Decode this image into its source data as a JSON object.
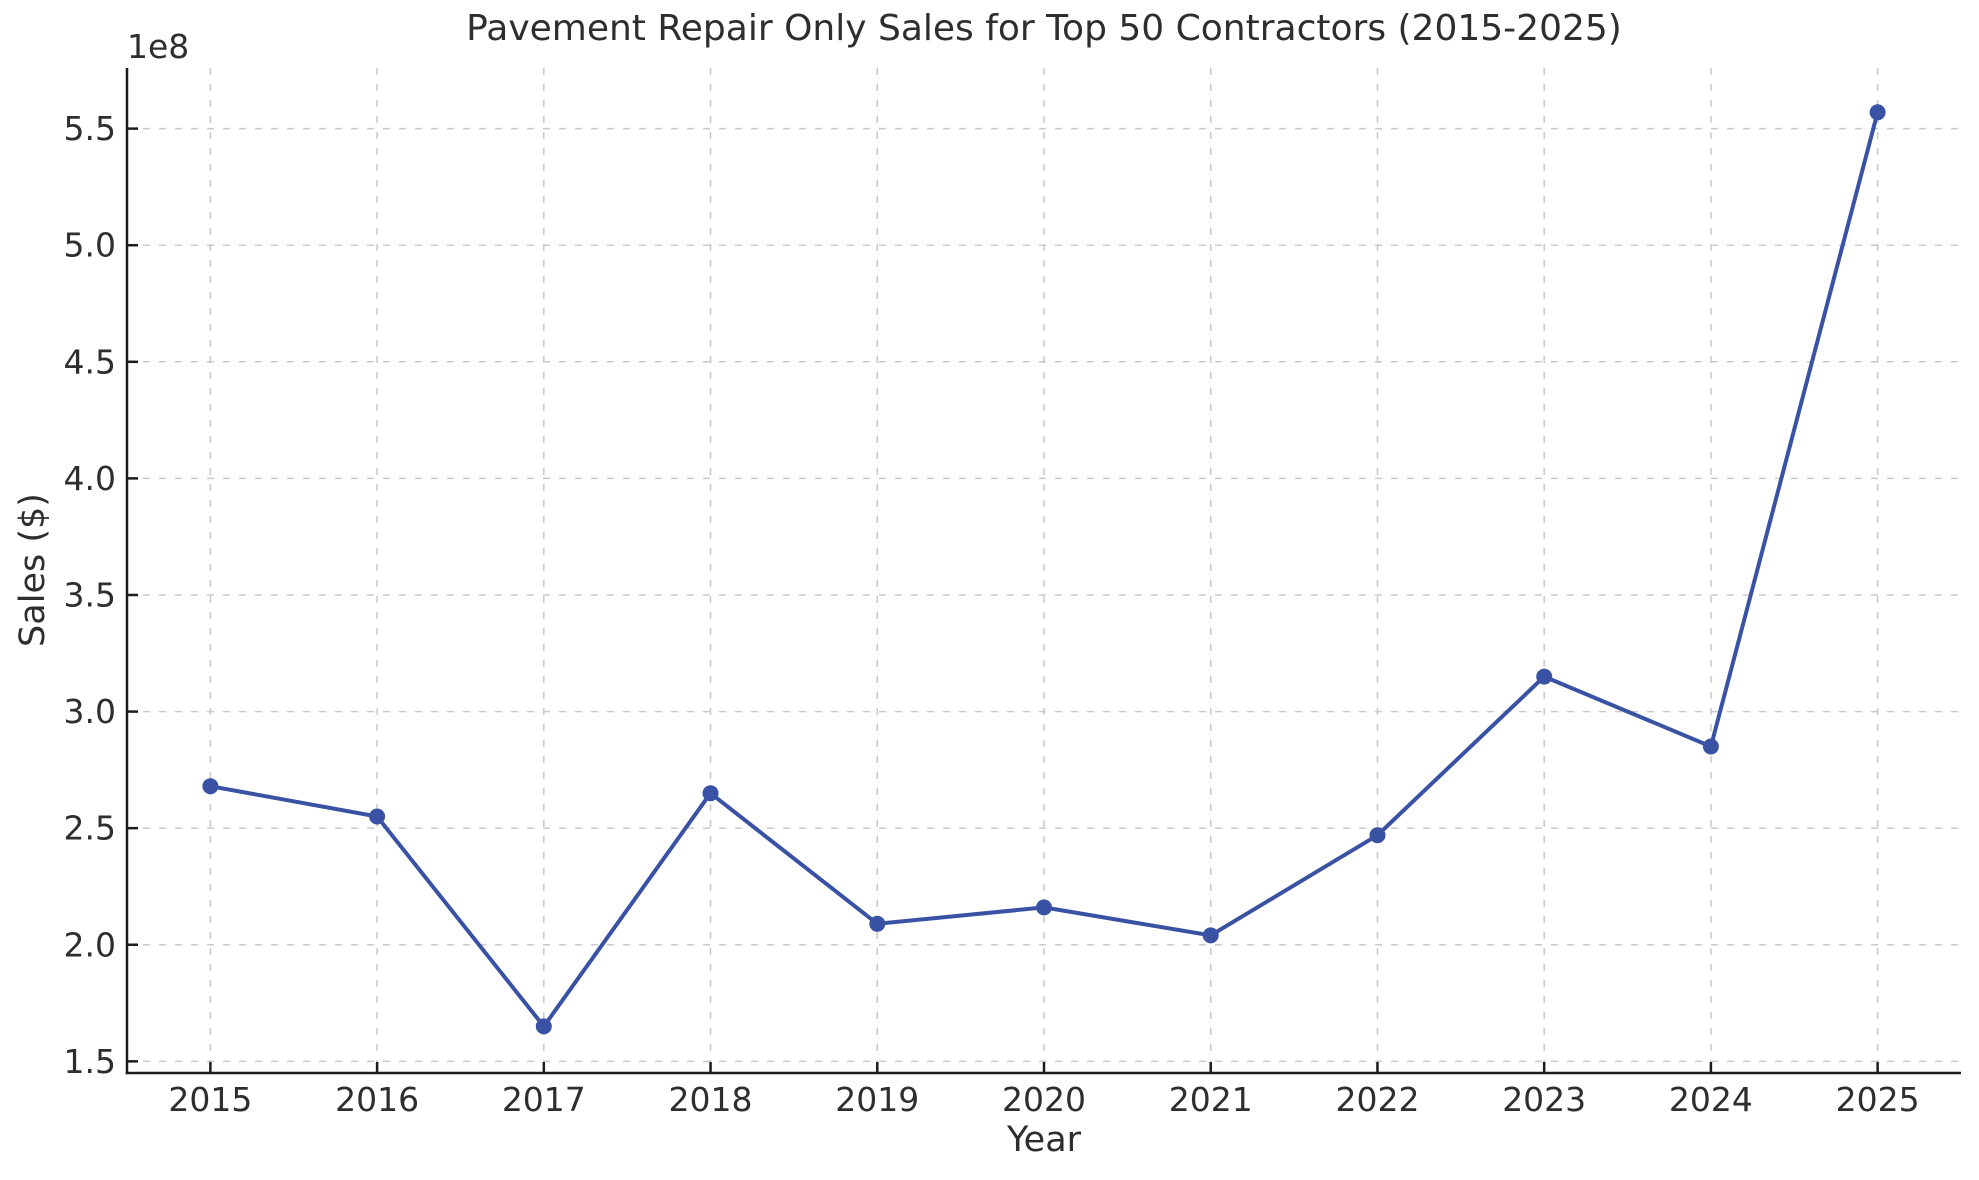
{
  "chart_data": {
    "type": "line",
    "title": "Pavement Repair Only Sales for Top 50 Contractors (2015-2025)",
    "xlabel": "Year",
    "ylabel": "Sales ($)",
    "y_offset_label": "1e8",
    "categories": [
      2015,
      2016,
      2017,
      2018,
      2019,
      2020,
      2021,
      2022,
      2023,
      2024,
      2025
    ],
    "series": [
      {
        "name": "Pavement Repair Only Sales",
        "values_e8": [
          2.68,
          2.55,
          1.65,
          2.65,
          2.09,
          2.16,
          2.04,
          2.47,
          3.15,
          2.85,
          5.57
        ],
        "values_dollars": [
          268000000,
          255000000,
          165000000,
          265000000,
          209000000,
          216000000,
          204000000,
          247000000,
          315000000,
          285000000,
          557000000
        ]
      }
    ],
    "yticks_e8": [
      1.5,
      2.0,
      2.5,
      3.0,
      3.5,
      4.0,
      4.5,
      5.0,
      5.5
    ],
    "xlim": [
      2014.5,
      2025.5
    ],
    "ylim_e8": [
      1.45,
      5.76
    ],
    "grid": true,
    "grid_style": "dashed",
    "legend_position": "none",
    "line_color": "#3a52a4",
    "marker": "circle",
    "marker_radius_px": 8,
    "grid_color": "#c9c9c9",
    "text_color": "#2e2e2e"
  }
}
